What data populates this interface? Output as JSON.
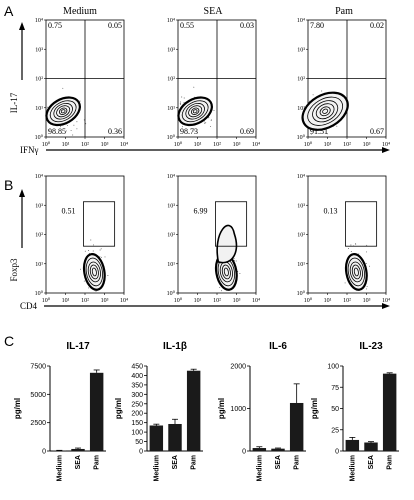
{
  "figure": {
    "panel_letters": [
      "A",
      "B",
      "C"
    ],
    "conditions": [
      "Medium",
      "SEA",
      "Pam"
    ]
  },
  "chart_data": [
    {
      "type": "scatter",
      "panel": "A",
      "kind": "flow-contour",
      "xlabel": "IFNγ",
      "ylabel": "IL-17",
      "xlim_log10": [
        0,
        4
      ],
      "ylim_log10": [
        0,
        4
      ],
      "tick_values": [
        "10⁰",
        "10¹",
        "10²",
        "10³",
        "10⁴"
      ],
      "plots": [
        {
          "title": "Medium",
          "quadrants": {
            "upper_left": "0.75",
            "upper_right": "0.05",
            "lower_left": "98.85",
            "lower_right": "0.36"
          }
        },
        {
          "title": "SEA",
          "quadrants": {
            "upper_left": "0.55",
            "upper_right": "0.03",
            "lower_left": "98.73",
            "lower_right": "0.69"
          }
        },
        {
          "title": "Pam",
          "quadrants": {
            "upper_left": "7.80",
            "upper_right": "0.02",
            "lower_left": "91.51",
            "lower_right": "0.67"
          }
        }
      ]
    },
    {
      "type": "scatter",
      "panel": "B",
      "kind": "flow-contour",
      "xlabel": "CD4",
      "ylabel": "Foxp3",
      "xlim_log10": [
        0,
        4
      ],
      "ylim_log10": [
        0,
        4
      ],
      "tick_values": [
        "10⁰",
        "10¹",
        "10²",
        "10³",
        "10⁴"
      ],
      "plots": [
        {
          "gate_percent": "0.51"
        },
        {
          "gate_percent": "6.99"
        },
        {
          "gate_percent": "0.13"
        }
      ]
    },
    {
      "type": "bar",
      "panel": "C",
      "title": "IL-17",
      "ylabel": "pg/ml",
      "categories": [
        "Medium",
        "SEA",
        "Pam"
      ],
      "values": [
        40,
        180,
        6900
      ],
      "errors": [
        20,
        80,
        250
      ],
      "ylim": [
        0,
        7500
      ],
      "yticks": [
        0,
        2500,
        5000,
        7500
      ]
    },
    {
      "type": "bar",
      "panel": "C",
      "title": "IL-1β",
      "ylabel": "pg/ml",
      "categories": [
        "Medium",
        "SEA",
        "Pam"
      ],
      "values": [
        135,
        143,
        425
      ],
      "errors": [
        7,
        25,
        8
      ],
      "ylim": [
        0,
        450
      ],
      "yticks": [
        0,
        50,
        100,
        150,
        200,
        250,
        300,
        350,
        400,
        450
      ]
    },
    {
      "type": "bar",
      "panel": "C",
      "title": "IL-6",
      "ylabel": "pg/ml",
      "categories": [
        "Medium",
        "SEA",
        "Pam"
      ],
      "values": [
        70,
        55,
        1130
      ],
      "errors": [
        30,
        15,
        450
      ],
      "ylim": [
        0,
        2000
      ],
      "yticks": [
        0,
        1000,
        2000
      ]
    },
    {
      "type": "bar",
      "panel": "C",
      "title": "IL-23",
      "ylabel": "pg/ml",
      "categories": [
        "Medium",
        "SEA",
        "Pam"
      ],
      "values": [
        13,
        10,
        91
      ],
      "errors": [
        3,
        1,
        1
      ],
      "ylim": [
        0,
        100
      ],
      "yticks": [
        0,
        25,
        50,
        75,
        100
      ]
    }
  ]
}
